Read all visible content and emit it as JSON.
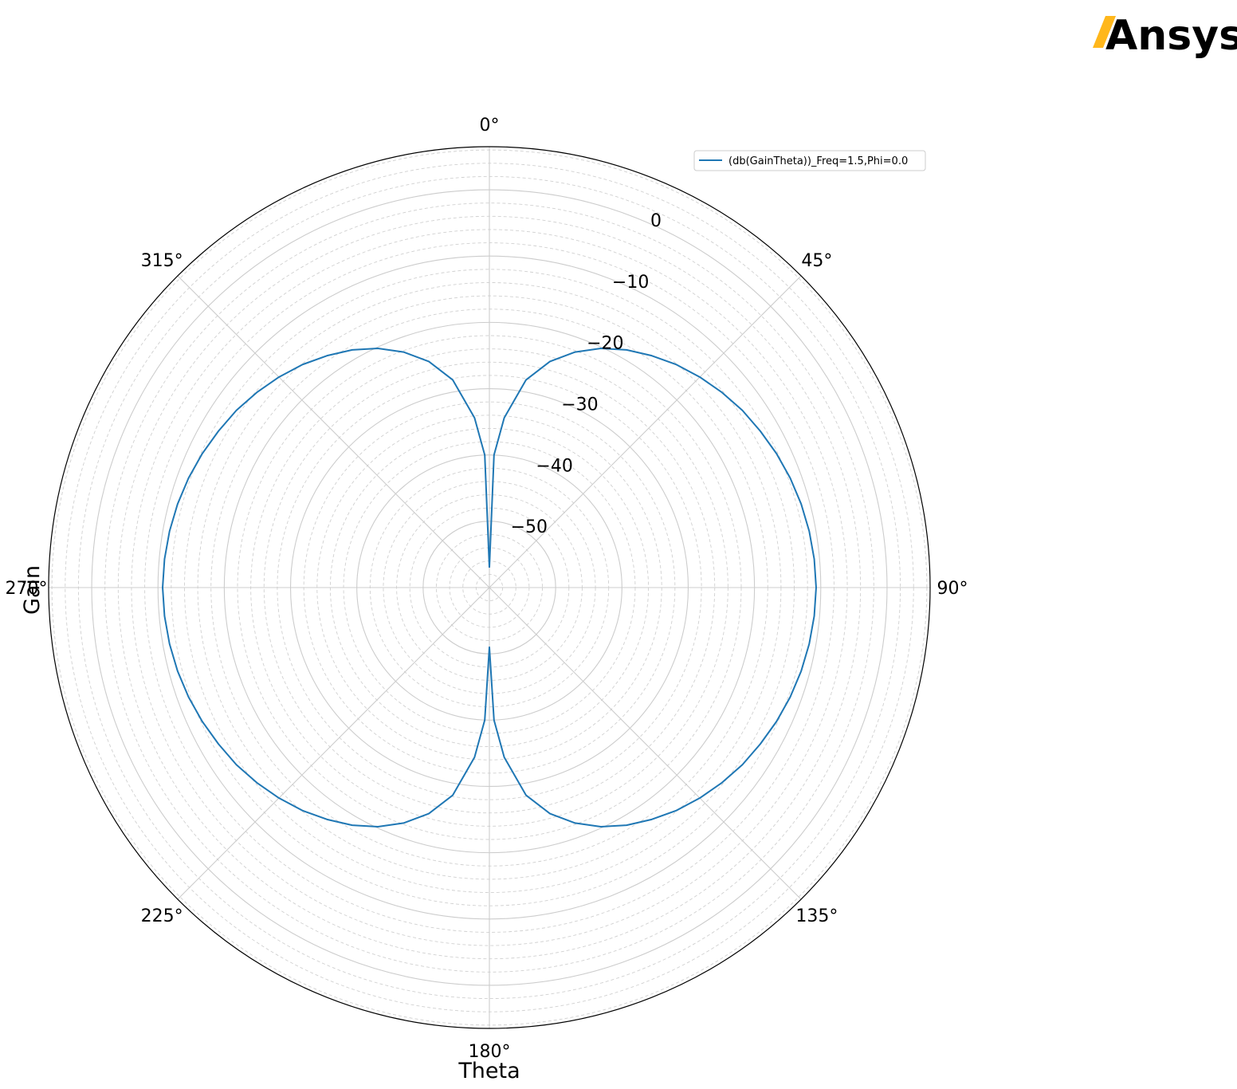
{
  "logo": {
    "text": "Ansys",
    "accent_color": "#ffb71b"
  },
  "chart_data": {
    "type": "polar-line",
    "xlabel": "Theta",
    "ylabel": "Gain",
    "theta_ticks": [
      {
        "deg": 0,
        "label": "0°"
      },
      {
        "deg": 45,
        "label": "45°"
      },
      {
        "deg": 90,
        "label": "90°"
      },
      {
        "deg": 135,
        "label": "135°"
      },
      {
        "deg": 180,
        "label": "180°"
      },
      {
        "deg": 225,
        "label": "225°"
      },
      {
        "deg": 270,
        "label": "270°"
      },
      {
        "deg": 315,
        "label": "315°"
      }
    ],
    "theta_direction": "clockwise",
    "theta_zero": "top",
    "r_range": [
      -60,
      6.5
    ],
    "r_major_ticks": [
      {
        "value": 0,
        "label": "0"
      },
      {
        "value": -10,
        "label": "−10"
      },
      {
        "value": -20,
        "label": "−20"
      },
      {
        "value": -30,
        "label": "−30"
      },
      {
        "value": -40,
        "label": "−40"
      },
      {
        "value": -50,
        "label": "−50"
      }
    ],
    "r_minor_step": 2,
    "grid": true,
    "legend_position": "top-right",
    "series": [
      {
        "name": "(db(GainTheta))_Freq=1.5,Phi=0.0",
        "color": "#1f77b4",
        "theta": [
          0,
          2,
          5,
          10,
          15,
          20,
          25,
          30,
          35,
          40,
          45,
          50,
          55,
          60,
          65,
          70,
          75,
          80,
          85,
          90,
          95,
          100,
          105,
          110,
          115,
          120,
          125,
          130,
          135,
          140,
          145,
          150,
          155,
          160,
          165,
          170,
          175,
          178,
          180,
          182,
          185,
          190,
          195,
          200,
          205,
          210,
          215,
          220,
          225,
          230,
          235,
          240,
          245,
          250,
          255,
          260,
          265,
          270,
          275,
          280,
          285,
          290,
          295,
          300,
          305,
          310,
          315,
          320,
          325,
          330,
          335,
          340,
          345,
          350,
          355,
          358,
          360
        ],
        "values": [
          -57.0,
          -40.0,
          -34.3,
          -28.2,
          -24.7,
          -22.2,
          -20.2,
          -18.6,
          -17.3,
          -16.1,
          -15.1,
          -14.2,
          -13.4,
          -12.8,
          -12.2,
          -11.7,
          -11.3,
          -11.0,
          -10.8,
          -10.7,
          -10.8,
          -11.0,
          -11.3,
          -11.7,
          -12.2,
          -12.8,
          -13.4,
          -14.2,
          -15.1,
          -16.1,
          -17.3,
          -18.6,
          -20.2,
          -22.2,
          -24.7,
          -28.2,
          -34.3,
          -40.0,
          -51.0,
          -40.0,
          -34.3,
          -28.2,
          -24.7,
          -22.2,
          -20.2,
          -18.6,
          -17.3,
          -16.1,
          -15.1,
          -14.2,
          -13.4,
          -12.8,
          -12.2,
          -11.7,
          -11.3,
          -11.0,
          -10.8,
          -10.7,
          -10.8,
          -11.0,
          -11.3,
          -11.7,
          -12.2,
          -12.8,
          -13.4,
          -14.2,
          -15.1,
          -16.1,
          -17.3,
          -18.6,
          -20.2,
          -22.2,
          -24.7,
          -28.2,
          -34.3,
          -40.0,
          -57.0
        ]
      }
    ]
  }
}
